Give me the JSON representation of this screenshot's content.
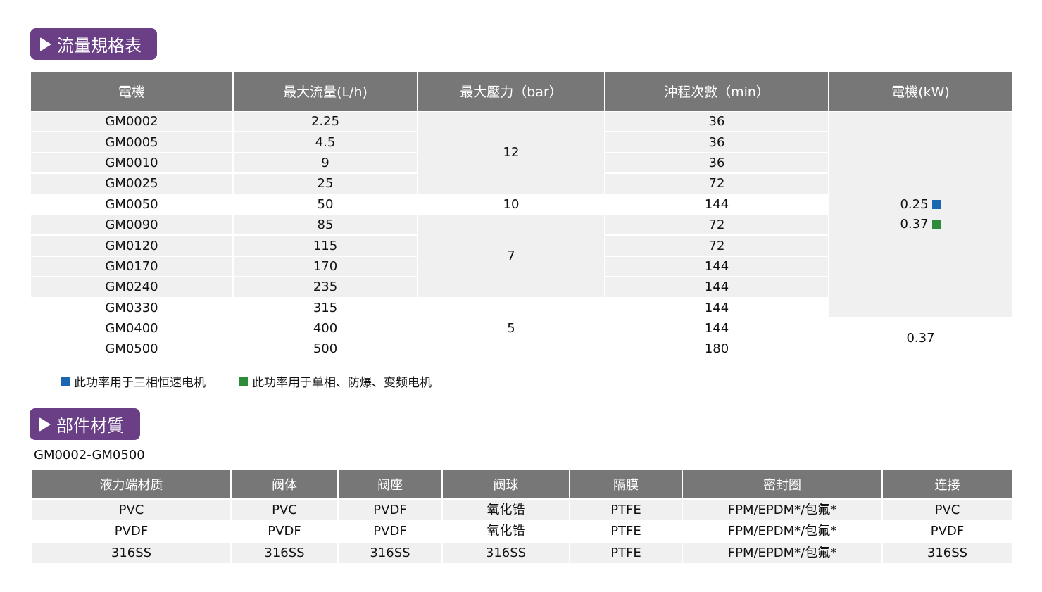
{
  "flow_section": {
    "title": "流量規格表",
    "headers": [
      "電機",
      "最大流量(L/h)",
      "最大壓力（bar）",
      "沖程次數（min）",
      "電機(kW)"
    ],
    "rows": [
      {
        "model": "GM0002",
        "flow": "2.25",
        "strokes": "36"
      },
      {
        "model": "GM0005",
        "flow": "4.5",
        "strokes": "36"
      },
      {
        "model": "GM0010",
        "flow": "9",
        "strokes": "36"
      },
      {
        "model": "GM0025",
        "flow": "25",
        "strokes": "72"
      },
      {
        "model": "GM0050",
        "flow": "50",
        "strokes": "144"
      },
      {
        "model": "GM0090",
        "flow": "85",
        "strokes": "72"
      },
      {
        "model": "GM0120",
        "flow": "115",
        "strokes": "72"
      },
      {
        "model": "GM0170",
        "flow": "170",
        "strokes": "144"
      },
      {
        "model": "GM0240",
        "flow": "235",
        "strokes": "144"
      },
      {
        "model": "GM0330",
        "flow": "315",
        "strokes": "144"
      },
      {
        "model": "GM0400",
        "flow": "400",
        "strokes": "144"
      },
      {
        "model": "GM0500",
        "flow": "500",
        "strokes": "180"
      }
    ],
    "pressure_groups": [
      {
        "value": "12",
        "rows": 4
      },
      {
        "value": "10",
        "rows": 1
      },
      {
        "value": "7",
        "rows": 4
      },
      {
        "value": "5",
        "rows": 3
      }
    ],
    "kw_groups": [
      {
        "values": [
          {
            "text": "0.25",
            "marker": "blue"
          },
          {
            "text": "0.37",
            "marker": "green"
          }
        ],
        "rows": 10
      },
      {
        "values": [
          {
            "text": "0.37"
          }
        ],
        "rows": 2
      }
    ],
    "legend": [
      {
        "marker": "blue",
        "text": "此功率用于三相恒速电机"
      },
      {
        "marker": "green",
        "text": "此功率用于单相、防爆、变频电机"
      }
    ]
  },
  "material_section": {
    "title": "部件材質",
    "subtitle": "GM0002-GM0500",
    "headers": [
      "液力端材质",
      "阀体",
      "阀座",
      "阀球",
      "隔膜",
      "密封圈",
      "连接"
    ],
    "rows": [
      [
        "PVC",
        "PVC",
        "PVDF",
        "氧化锆",
        "PTFE",
        "FPM/EPDM*/包氟*",
        "PVC"
      ],
      [
        "PVDF",
        "PVDF",
        "PVDF",
        "氧化锆",
        "PTFE",
        "FPM/EPDM*/包氟*",
        "PVDF"
      ],
      [
        "316SS",
        "316SS",
        "316SS",
        "316SS",
        "PTFE",
        "FPM/EPDM*/包氟*",
        "316SS"
      ]
    ]
  },
  "colors": {
    "accent": "#6a3f86",
    "header": "#777777",
    "row": "#f0f0f0",
    "blue": "#1a66b0",
    "green": "#2e8b3a"
  }
}
